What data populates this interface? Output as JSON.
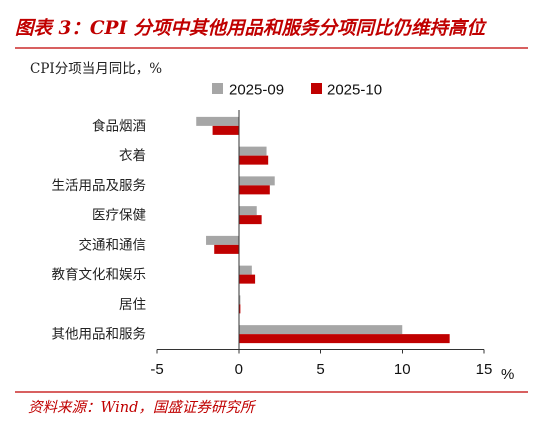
{
  "chart_data": {
    "type": "bar",
    "orientation": "horizontal",
    "title": "图表 3：CPI 分项中其他用品和服务分项同比仍维持高位",
    "ylabel": "CPI分项当月同比，%",
    "xlabel": "%",
    "categories": [
      "食品烟酒",
      "衣着",
      "生活用品及服务",
      "医疗保健",
      "交通和通信",
      "教育文化和娱乐",
      "居住",
      "其他用品和服务"
    ],
    "series": [
      {
        "name": "2025-09",
        "color": "#A6A6A6",
        "values": [
          -2.6,
          1.7,
          2.2,
          1.1,
          -2.0,
          0.8,
          0.1,
          10.0
        ]
      },
      {
        "name": "2025-10",
        "color": "#C00000",
        "values": [
          -1.6,
          1.8,
          1.9,
          1.4,
          -1.5,
          1.0,
          0.1,
          12.9
        ]
      }
    ],
    "xlim": [
      -5,
      15
    ],
    "xticks": [
      -5,
      0,
      5,
      10,
      15
    ],
    "legend": "top",
    "grid": false
  },
  "source": "资料来源：Wind，国盛证券研究所",
  "colors": {
    "accent": "#C00000",
    "axis": "#333333"
  }
}
